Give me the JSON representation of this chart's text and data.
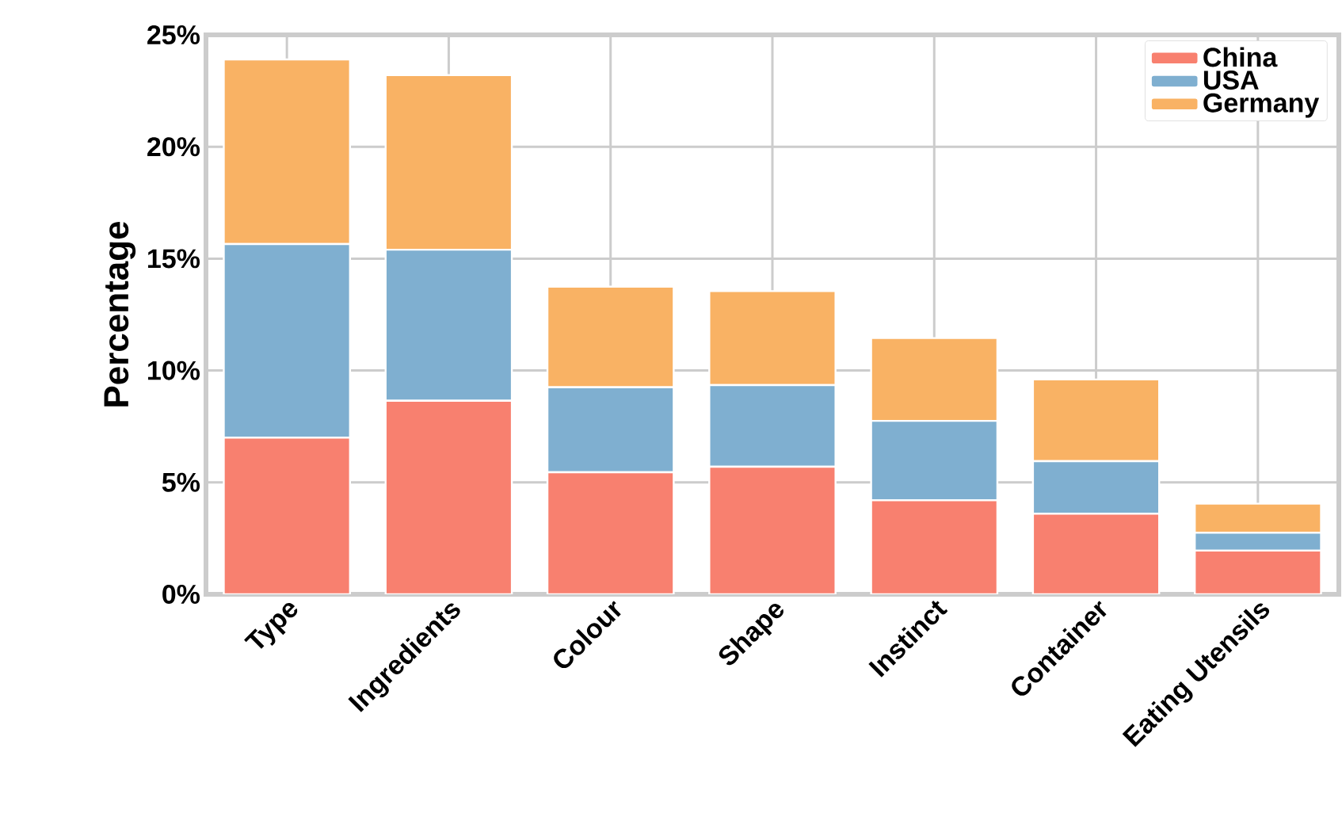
{
  "chart_data": {
    "type": "bar",
    "stacked": true,
    "ylabel": "Percentage",
    "categories": [
      "Type",
      "Ingredients",
      "Colour",
      "Shape",
      "Instinct",
      "Container",
      "Eating Utensils"
    ],
    "series": [
      {
        "name": "China",
        "color": "#f8806f",
        "values": [
          7.0,
          8.65,
          5.45,
          5.7,
          4.2,
          3.6,
          1.95
        ]
      },
      {
        "name": "USA",
        "color": "#7fafd0",
        "values": [
          8.65,
          6.75,
          3.8,
          3.65,
          3.55,
          2.35,
          0.8
        ]
      },
      {
        "name": "Germany",
        "color": "#f9b264",
        "values": [
          8.25,
          7.8,
          4.5,
          4.2,
          3.7,
          3.65,
          1.3
        ]
      }
    ],
    "ylim": [
      0,
      25
    ],
    "yticks": [
      {
        "value": 0,
        "label": "0%"
      },
      {
        "value": 5,
        "label": "5%"
      },
      {
        "value": 10,
        "label": "10%"
      },
      {
        "value": 15,
        "label": "15%"
      },
      {
        "value": 20,
        "label": "20%"
      },
      {
        "value": 25,
        "label": "25%"
      }
    ],
    "grid": true,
    "legend": "top right"
  }
}
